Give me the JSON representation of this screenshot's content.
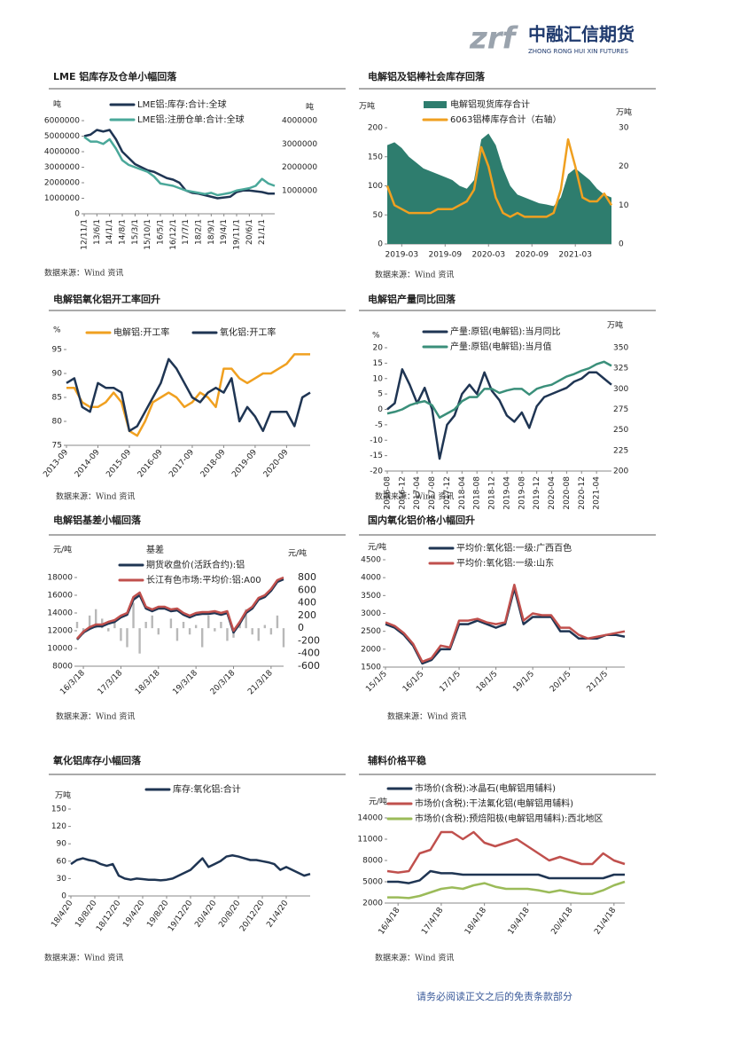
{
  "header": {
    "logo_mark": "zrf",
    "company": "中融汇信期货",
    "company_en": "ZHONG RONG HUI XIN FUTURES"
  },
  "footer": {
    "disclaimer": "请务必阅读正文之后的免责条款部分"
  },
  "chart_data": [
    {
      "type": "line",
      "title": "LME 铝库存及仓单小幅回落",
      "source": "数据来源：Wind 资讯",
      "ylabel": "吨",
      "y2label": "吨",
      "categories": [
        "12/11/1",
        null,
        "13/6/1",
        null,
        "14/1/1",
        null,
        "14/8/1",
        null,
        "15/3/1",
        null,
        "15/10/1",
        null,
        "16/5/1",
        null,
        "16/12/1",
        null,
        "17/7/1",
        null,
        "18/2/1",
        null,
        "18/9/1",
        null,
        "19/4/1",
        null,
        "19/11/1",
        null,
        "20/6/1",
        null,
        "21/1/1",
        null,
        null
      ],
      "ylim": [
        0,
        6000000
      ],
      "yticks": [
        0,
        1000000,
        2000000,
        3000000,
        4000000,
        5000000,
        6000000
      ],
      "y2lim": [
        0,
        4000000
      ],
      "y2ticks": [
        1000000,
        2000000,
        3000000,
        4000000
      ],
      "series": [
        {
          "name": "LME铝:库存:合计:全球",
          "color": "#1f3553",
          "values": [
            5000000,
            5100000,
            5400000,
            5300000,
            5400000,
            4800000,
            4000000,
            3600000,
            3200000,
            3000000,
            2800000,
            2700000,
            2500000,
            2300000,
            2200000,
            2000000,
            1500000,
            1350000,
            1300000,
            1200000,
            1100000,
            1000000,
            1050000,
            1100000,
            1400000,
            1500000,
            1500000,
            1450000,
            1400000,
            1300000,
            1300000
          ]
        },
        {
          "name": "LME铝:注册仓单:合计:全球",
          "color": "#4aa89a",
          "axis": "y2",
          "values": [
            3300000,
            3100000,
            3100000,
            3000000,
            3200000,
            2800000,
            2300000,
            2100000,
            2000000,
            1900000,
            1800000,
            1600000,
            1300000,
            1250000,
            1200000,
            1100000,
            1000000,
            950000,
            900000,
            850000,
            900000,
            800000,
            850000,
            900000,
            1000000,
            1050000,
            1100000,
            1200000,
            1500000,
            1300000,
            1200000
          ]
        }
      ]
    },
    {
      "type": "line",
      "title": "电解铝及铝棒社会库存回落",
      "source": "数据来源：Wind 资讯",
      "ylabel": "万吨",
      "y2label": "万吨",
      "categories": [
        null,
        null,
        "2019-03",
        null,
        null,
        null,
        null,
        null,
        "2019-09",
        null,
        null,
        null,
        null,
        null,
        "2020-03",
        null,
        null,
        null,
        null,
        null,
        "2020-09",
        null,
        null,
        null,
        null,
        null,
        "2021-03",
        null,
        null,
        null,
        null,
        null
      ],
      "ylim": [
        0,
        200
      ],
      "yticks": [
        0,
        50,
        100,
        150,
        200
      ],
      "y2lim": [
        0,
        30
      ],
      "y2ticks": [
        0,
        10,
        20,
        30
      ],
      "series": [
        {
          "name": "电解铝现货库存合计",
          "color": "#2e7d6e",
          "type": "area",
          "values": [
            170,
            175,
            165,
            150,
            140,
            130,
            125,
            120,
            115,
            110,
            100,
            95,
            110,
            180,
            190,
            170,
            130,
            100,
            85,
            80,
            75,
            70,
            68,
            65,
            80,
            120,
            130,
            120,
            110,
            95,
            85,
            80
          ]
        },
        {
          "name": "6063铝棒库存合计（右轴）",
          "color": "#f0a020",
          "axis": "y2",
          "values": [
            15,
            10,
            9,
            8,
            8,
            8,
            8,
            9,
            9,
            9,
            10,
            11,
            14,
            25,
            20,
            12,
            8,
            7,
            8,
            7,
            7,
            7,
            7,
            8,
            14,
            27,
            20,
            12,
            11,
            11,
            13,
            10
          ]
        }
      ]
    },
    {
      "type": "line",
      "title": "电解铝氧化铝开工率回升",
      "source": "数据来源：Wind 资讯",
      "ylabel": "%",
      "categories": [
        "2013-09",
        null,
        null,
        null,
        "2014-09",
        null,
        null,
        null,
        "2015-09",
        null,
        null,
        null,
        "2016-09",
        null,
        null,
        null,
        "2017-09",
        null,
        null,
        null,
        "2018-09",
        null,
        null,
        null,
        "2019-09",
        null,
        null,
        null,
        "2020-09",
        null,
        null,
        null
      ],
      "ylim": [
        75,
        95
      ],
      "yticks": [
        75,
        80,
        85,
        90,
        95
      ],
      "series": [
        {
          "name": "电解铝:开工率",
          "color": "#f0a020",
          "values": [
            87,
            87,
            84,
            83,
            83,
            84,
            86,
            84,
            78,
            77,
            80,
            84,
            85,
            86,
            85,
            83,
            84,
            86,
            85,
            83,
            91,
            91,
            89,
            88,
            89,
            90,
            90,
            91,
            92,
            94,
            94,
            94
          ]
        },
        {
          "name": "氧化铝:开工率",
          "color": "#1f3553",
          "values": [
            88,
            89,
            83,
            82,
            88,
            87,
            87,
            86,
            78,
            79,
            82,
            85,
            88,
            93,
            91,
            88,
            85,
            84,
            86,
            87,
            86,
            89,
            80,
            83,
            81,
            78,
            82,
            82,
            82,
            79,
            85,
            86
          ]
        }
      ]
    },
    {
      "type": "line",
      "title": "电解铝产量同比回落",
      "source": "数据来源：Wind 资讯",
      "ylabel": "%",
      "y2label": "万吨",
      "categories": [
        "2016-08",
        null,
        "2016-12",
        null,
        "2017-04",
        null,
        "2017-08",
        null,
        "2017-12",
        null,
        "2018-04",
        null,
        "2018-08",
        null,
        "2018-12",
        null,
        "2019-04",
        null,
        "2019-08",
        null,
        "2019-12",
        null,
        "2020-04",
        null,
        "2020-08",
        null,
        "2020-12",
        null,
        "2021-04",
        null,
        null
      ],
      "ylim": [
        -20,
        20
      ],
      "yticks": [
        -20,
        -15,
        -10,
        -5,
        0,
        5,
        10,
        15,
        20
      ],
      "y2lim": [
        200,
        350
      ],
      "y2ticks": [
        200,
        225,
        250,
        275,
        300,
        325,
        350
      ],
      "series": [
        {
          "name": "产量:原铝(电解铝):当月同比",
          "color": "#1f3553",
          "values": [
            0,
            2,
            13,
            8,
            2,
            7,
            0,
            -16,
            -5,
            -2,
            5,
            8,
            5,
            12,
            6,
            3,
            -2,
            -4,
            -1,
            -6,
            1,
            4,
            5,
            6,
            7,
            9,
            10,
            12,
            12,
            10,
            8
          ]
        },
        {
          "name": "产量:原铝(电解铝):当月值",
          "color": "#3a8f7a",
          "axis": "y2",
          "values": [
            270,
            272,
            275,
            280,
            283,
            285,
            280,
            265,
            270,
            275,
            285,
            290,
            290,
            300,
            300,
            295,
            298,
            300,
            300,
            293,
            300,
            303,
            305,
            310,
            315,
            318,
            322,
            325,
            330,
            333,
            328
          ]
        }
      ]
    },
    {
      "type": "line",
      "title": "电解铝基差小幅回落",
      "source": "数据来源：Wind 资讯",
      "ylabel": "元/吨",
      "y2label": "元/吨",
      "categories": [
        null,
        "16/3/18",
        null,
        null,
        null,
        null,
        null,
        "17/3/18",
        null,
        null,
        null,
        null,
        null,
        "18/3/18",
        null,
        null,
        null,
        null,
        null,
        "19/3/18",
        null,
        null,
        null,
        null,
        null,
        "20/3/18",
        null,
        null,
        null,
        null,
        null,
        "21/3/18",
        null,
        null
      ],
      "ylim": [
        8000,
        18000
      ],
      "yticks": [
        8000,
        10000,
        12000,
        14000,
        16000,
        18000
      ],
      "y2lim": [
        -600,
        800
      ],
      "y2ticks": [
        -600,
        -400,
        -200,
        0,
        200,
        400,
        600,
        800
      ],
      "series": [
        {
          "name": "基差",
          "color": "#b8b8b8",
          "type": "bar",
          "axis": "y2",
          "values": [
            100,
            -100,
            200,
            300,
            150,
            -50,
            100,
            -200,
            -300,
            400,
            -400,
            100,
            200,
            -100,
            0,
            150,
            -200,
            100,
            -100,
            50,
            -300,
            200,
            -50,
            100,
            -200,
            -150,
            100,
            300,
            -100,
            -200,
            50,
            -100,
            200,
            -300
          ]
        },
        {
          "name": "期货收盘价(活跃合约):铝",
          "color": "#1f3553",
          "values": [
            11000,
            11800,
            12200,
            12500,
            12500,
            12800,
            13000,
            13500,
            13800,
            15500,
            16000,
            14500,
            14200,
            14500,
            14500,
            14200,
            14300,
            13800,
            13500,
            13800,
            13900,
            13900,
            14000,
            13800,
            14000,
            11800,
            12800,
            14000,
            14500,
            15500,
            15800,
            16500,
            17500,
            17800
          ]
        },
        {
          "name": "长江有色市场:平均价:铝:A00",
          "color": "#c0504d",
          "values": [
            11100,
            11900,
            12400,
            12700,
            12700,
            13000,
            13200,
            13700,
            14000,
            15800,
            16300,
            14700,
            14400,
            14700,
            14700,
            14400,
            14500,
            14000,
            13700,
            14000,
            14100,
            14100,
            14200,
            14000,
            14200,
            12000,
            13000,
            14200,
            14700,
            15700,
            16000,
            16700,
            17700,
            18000
          ]
        }
      ]
    },
    {
      "type": "line",
      "title": "国内氧化铝价格小幅回升",
      "source": "数据来源：Wind 资讯",
      "ylabel": "元/吨",
      "categories": [
        "15/1/5",
        null,
        null,
        null,
        "16/1/5",
        null,
        null,
        null,
        "17/1/5",
        null,
        null,
        null,
        "18/1/5",
        null,
        null,
        null,
        "19/1/5",
        null,
        null,
        null,
        "20/1/5",
        null,
        null,
        null,
        "21/1/5",
        null,
        null
      ],
      "ylim": [
        1500,
        4500
      ],
      "yticks": [
        1500,
        2000,
        2500,
        3000,
        3500,
        4000,
        4500
      ],
      "series": [
        {
          "name": "平均价:氧化铝:一级:广西百色",
          "color": "#1f3553",
          "values": [
            2700,
            2600,
            2400,
            2100,
            1600,
            1700,
            2000,
            2000,
            2700,
            2700,
            2800,
            2700,
            2600,
            2700,
            3700,
            2700,
            2900,
            2900,
            2900,
            2500,
            2500,
            2300,
            2300,
            2300,
            2400,
            2400,
            2350
          ]
        },
        {
          "name": "平均价:氧化铝:一级:山东",
          "color": "#c0504d",
          "values": [
            2750,
            2650,
            2450,
            2150,
            1650,
            1750,
            2100,
            2050,
            2800,
            2800,
            2850,
            2750,
            2700,
            2750,
            3800,
            2800,
            3000,
            2950,
            2950,
            2600,
            2600,
            2400,
            2300,
            2350,
            2400,
            2450,
            2500
          ]
        }
      ]
    },
    {
      "type": "line",
      "title": "氧化铝库存小幅回落",
      "source": "数据来源：Wind 资讯",
      "ylabel": "万吨",
      "categories": [
        "18/4/20",
        null,
        null,
        null,
        "18/8/20",
        null,
        null,
        null,
        "18/12/20",
        null,
        null,
        null,
        "19/4/20",
        null,
        null,
        null,
        "19/8/20",
        null,
        null,
        null,
        "19/12/20",
        null,
        null,
        null,
        "20/4/20",
        null,
        null,
        null,
        "20/8/20",
        null,
        null,
        null,
        "20/12/20",
        null,
        null,
        null,
        "21/4/20",
        null,
        null,
        null,
        null
      ],
      "ylim": [
        0,
        150
      ],
      "yticks": [
        0,
        30,
        60,
        90,
        120,
        150
      ],
      "series": [
        {
          "name": "库存:氧化铝:合计",
          "color": "#1f3553",
          "values": [
            55,
            62,
            65,
            62,
            60,
            55,
            52,
            55,
            35,
            30,
            28,
            30,
            29,
            28,
            28,
            27,
            28,
            30,
            35,
            40,
            45,
            55,
            65,
            50,
            55,
            60,
            68,
            70,
            68,
            65,
            62,
            62,
            60,
            58,
            55,
            45,
            50,
            45,
            40,
            35,
            38
          ]
        }
      ]
    },
    {
      "type": "line",
      "title": "辅料价格平稳",
      "source": "数据来源：Wind 资讯",
      "ylabel": "元/吨",
      "categories": [
        null,
        "16/4/18",
        null,
        null,
        null,
        "17/4/18",
        null,
        null,
        null,
        "18/4/18",
        null,
        null,
        null,
        "19/4/18",
        null,
        null,
        null,
        "20/4/18",
        null,
        null,
        null,
        "21/4/18",
        null
      ],
      "ylim": [
        2000,
        14000
      ],
      "yticks": [
        2000,
        5000,
        8000,
        11000,
        14000
      ],
      "series": [
        {
          "name": "市场价(含税):冰晶石(电解铝用辅料)",
          "color": "#1f3553",
          "values": [
            5000,
            5000,
            4800,
            5200,
            6500,
            6200,
            6200,
            6000,
            6000,
            6000,
            6000,
            6000,
            6000,
            6000,
            6000,
            5500,
            5500,
            5500,
            5500,
            5500,
            5500,
            6000,
            6000
          ]
        },
        {
          "name": "市场价(含税):干法氟化铝(电解铝用辅料)",
          "color": "#c0504d",
          "values": [
            6500,
            6300,
            6500,
            9000,
            9500,
            12000,
            12000,
            11000,
            12000,
            10500,
            10000,
            10500,
            11000,
            10000,
            9000,
            8000,
            8500,
            8000,
            7500,
            7500,
            9000,
            8000,
            7500
          ]
        },
        {
          "name": "市场价(含税):预焙阳极(电解铝用辅料):西北地区",
          "color": "#9bbb59",
          "values": [
            2800,
            2800,
            2700,
            3000,
            3500,
            4000,
            4200,
            4000,
            4500,
            4800,
            4300,
            4000,
            4000,
            4000,
            3800,
            3500,
            3800,
            3500,
            3300,
            3300,
            3800,
            4500,
            5000
          ]
        }
      ]
    }
  ]
}
